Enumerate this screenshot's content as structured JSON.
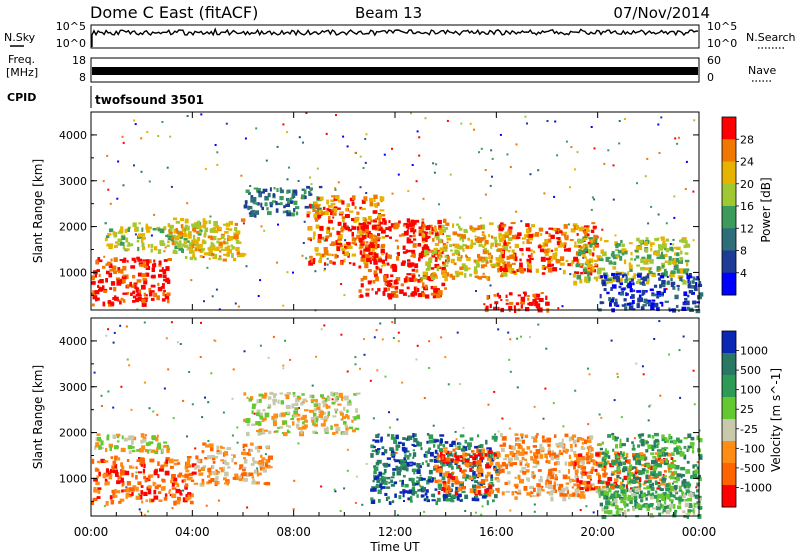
{
  "header": {
    "title": "Dome C East (fitACF)",
    "beam": "Beam 13",
    "date": "07/Nov/2014"
  },
  "panels": {
    "nsky": {
      "label": "N.Sky",
      "left_ticks": [
        "10^5",
        "10^0"
      ],
      "right_ticks": [
        "10^5",
        "10^0"
      ],
      "right_label": "N.Search"
    },
    "freq": {
      "label_line1": "Freq.",
      "label_line2": "[MHz]",
      "left_ticks": [
        "18",
        "8"
      ],
      "right_ticks": [
        "60",
        "0"
      ],
      "right_label": "Nave"
    },
    "cpid": {
      "label": "CPID",
      "value": "twofsound 3501"
    }
  },
  "colors": {
    "power": [
      "#0000ff",
      "#1e3c96",
      "#2d6e78",
      "#3c9b5a",
      "#a0c832",
      "#e6b400",
      "#f07800",
      "#ff0000"
    ],
    "velocity": [
      "#ff0000",
      "#ff6400",
      "#ff8c14",
      "#c8c8aa",
      "#64c832",
      "#2d9b55",
      "#287864",
      "#0a28b4"
    ]
  },
  "chart_data": [
    {
      "type": "heatmap",
      "name": "power",
      "ylabel": "Slant Range [km]",
      "ylim": [
        180,
        4500
      ],
      "yticks": [
        "1000",
        "2000",
        "3000",
        "4000"
      ],
      "xlim": [
        0,
        24
      ],
      "colorbar_label": "Power [dB]",
      "colorbar_ticks": [
        "28",
        "24",
        "20",
        "16",
        "12",
        "8",
        "4"
      ],
      "colorbar_range": [
        0,
        32
      ],
      "regions": [
        {
          "x": [
            0,
            3
          ],
          "y": [
            300,
            1350
          ],
          "level": 7
        },
        {
          "x": [
            0.5,
            4.5
          ],
          "y": [
            1500,
            2100
          ],
          "level": 4
        },
        {
          "x": [
            3,
            6
          ],
          "y": [
            1300,
            2200
          ],
          "level": 5
        },
        {
          "x": [
            6,
            9
          ],
          "y": [
            2300,
            2900
          ],
          "level": 2
        },
        {
          "x": [
            8.5,
            11.5
          ],
          "y": [
            1200,
            2700
          ],
          "level": 6
        },
        {
          "x": [
            10.5,
            14
          ],
          "y": [
            500,
            2200
          ],
          "level": 7
        },
        {
          "x": [
            13,
            16.5
          ],
          "y": [
            900,
            2100
          ],
          "level": 5
        },
        {
          "x": [
            15.5,
            18
          ],
          "y": [
            200,
            600
          ],
          "level": 7
        },
        {
          "x": [
            16,
            20
          ],
          "y": [
            1000,
            2100
          ],
          "level": 6
        },
        {
          "x": [
            19,
            23.5
          ],
          "y": [
            800,
            1800
          ],
          "level": 4
        },
        {
          "x": [
            20,
            24
          ],
          "y": [
            200,
            1000
          ],
          "level": 1
        }
      ]
    },
    {
      "type": "heatmap",
      "name": "velocity",
      "ylabel": "Slant Range [km]",
      "xlabel": "Time UT",
      "ylim": [
        180,
        4500
      ],
      "yticks": [
        "1000",
        "2000",
        "3000",
        "4000"
      ],
      "xlim": [
        0,
        24
      ],
      "xticks": [
        "00:00",
        "04:00",
        "08:00",
        "12:00",
        "16:00",
        "20:00",
        "00:00"
      ],
      "colorbar_label": "Velocity [m s^-1]",
      "colorbar_ticks": [
        "1000",
        "500",
        "100",
        "25",
        "-25",
        "-100",
        "-500",
        "-1000"
      ],
      "regions": [
        {
          "x": [
            0,
            4
          ],
          "y": [
            500,
            1500
          ],
          "level": 1
        },
        {
          "x": [
            0,
            3
          ],
          "y": [
            1600,
            2000
          ],
          "level": 3
        },
        {
          "x": [
            4,
            7
          ],
          "y": [
            900,
            1800
          ],
          "level": 2
        },
        {
          "x": [
            6,
            10.5
          ],
          "y": [
            2000,
            2900
          ],
          "level": 3
        },
        {
          "x": [
            11,
            16
          ],
          "y": [
            500,
            2000
          ],
          "level": 6
        },
        {
          "x": [
            13.5,
            16
          ],
          "y": [
            700,
            1700
          ],
          "level": 1
        },
        {
          "x": [
            16,
            20
          ],
          "y": [
            600,
            2000
          ],
          "level": 2
        },
        {
          "x": [
            19,
            23
          ],
          "y": [
            800,
            1600
          ],
          "level": 1
        },
        {
          "x": [
            20,
            24
          ],
          "y": [
            400,
            2000
          ],
          "level": 5
        },
        {
          "x": [
            20,
            24
          ],
          "y": [
            200,
            800
          ],
          "level": 4
        }
      ]
    }
  ]
}
